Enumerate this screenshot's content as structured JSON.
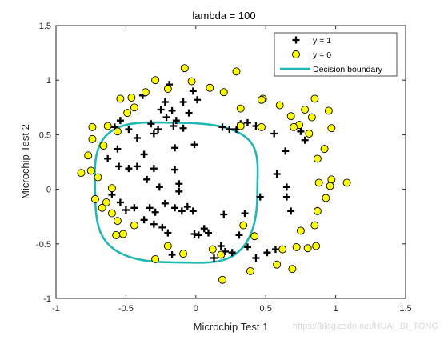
{
  "colors": {
    "background": "#ffffff",
    "axis": "#262626",
    "y1_marker": "#000000",
    "y0_fill": "#ffff00",
    "y0_edge": "#000000",
    "boundary": "#1fb8b4"
  },
  "chart_data": {
    "type": "scatter",
    "title": "lambda = 100",
    "xlabel": "Microchip Test 1",
    "ylabel": "Microchip Test 2",
    "xlim": [
      -1,
      1.5
    ],
    "ylim": [
      -1,
      1.5
    ],
    "xticks": [
      -1,
      -0.5,
      0,
      0.5,
      1,
      1.5
    ],
    "xtick_labels": [
      "-1",
      "-0.5",
      "0",
      "0.5",
      "1",
      "1.5"
    ],
    "yticks": [
      -1,
      -0.5,
      0,
      0.5,
      1,
      1.5
    ],
    "ytick_labels": [
      "-1",
      "-0.5",
      "0",
      "0.5",
      "1",
      "1.5"
    ],
    "grid": false,
    "legend_position": "top-right",
    "legend": [
      "y = 1",
      "y = 0",
      "Decision boundary"
    ],
    "series": [
      {
        "name": "y = 1",
        "marker": "plus",
        "points": [
          [
            -0.19,
            0.96
          ],
          [
            -0.02,
            0.9
          ],
          [
            -0.38,
            0.86
          ],
          [
            -0.22,
            0.8
          ],
          [
            -0.09,
            0.8
          ],
          [
            0.01,
            0.82
          ],
          [
            -0.25,
            0.73
          ],
          [
            -0.17,
            0.72
          ],
          [
            -0.21,
            0.66
          ],
          [
            -0.14,
            0.63
          ],
          [
            -0.05,
            0.7
          ],
          [
            -0.58,
            0.57
          ],
          [
            -0.54,
            0.63
          ],
          [
            -0.48,
            0.55
          ],
          [
            -0.32,
            0.6
          ],
          [
            -0.27,
            0.55
          ],
          [
            -0.16,
            0.58
          ],
          [
            -0.09,
            0.56
          ],
          [
            0.19,
            0.57
          ],
          [
            0.24,
            0.55
          ],
          [
            0.29,
            0.55
          ],
          [
            0.32,
            0.6
          ],
          [
            0.37,
            0.61
          ],
          [
            0.43,
            0.58
          ],
          [
            0.56,
            0.51
          ],
          [
            0.75,
            0.53
          ],
          [
            0.78,
            0.45
          ],
          [
            0.64,
            0.35
          ],
          [
            0.58,
            0.14
          ],
          [
            0.65,
            0.02
          ],
          [
            0.65,
            -0.07
          ],
          [
            0.68,
            -0.2
          ],
          [
            0.46,
            -0.07
          ],
          [
            0.35,
            -0.22
          ],
          [
            -0.3,
            0.51
          ],
          [
            -0.42,
            0.47
          ],
          [
            -0.56,
            0.37
          ],
          [
            -0.37,
            0.32
          ],
          [
            -0.15,
            0.38
          ],
          [
            -0.42,
            0.21
          ],
          [
            -0.01,
            0.41
          ],
          [
            -0.63,
            0.28
          ],
          [
            -0.55,
            0.21
          ],
          [
            -0.48,
            0.19
          ],
          [
            -0.3,
            0.19
          ],
          [
            -0.15,
            0.18
          ],
          [
            -0.35,
            0.09
          ],
          [
            -0.12,
            0.05
          ],
          [
            -0.26,
            0.02
          ],
          [
            -0.12,
            -0.02
          ],
          [
            -0.6,
            -0.05
          ],
          [
            -0.54,
            -0.12
          ],
          [
            -0.5,
            -0.19
          ],
          [
            -0.44,
            -0.17
          ],
          [
            -0.33,
            -0.17
          ],
          [
            -0.22,
            -0.13
          ],
          [
            -0.15,
            -0.17
          ],
          [
            -0.06,
            -0.16
          ],
          [
            -0.02,
            -0.2
          ],
          [
            -0.29,
            -0.21
          ],
          [
            -0.37,
            -0.28
          ],
          [
            -0.3,
            -0.32
          ],
          [
            0.2,
            -0.23
          ],
          [
            -0.1,
            -0.2
          ],
          [
            0.06,
            -0.36
          ],
          [
            -0.01,
            -0.41
          ],
          [
            0.09,
            -0.4
          ],
          [
            -0.24,
            -0.35
          ],
          [
            -0.2,
            -0.4
          ],
          [
            0.02,
            -0.42
          ],
          [
            0.18,
            -0.52
          ],
          [
            0.21,
            -0.57
          ],
          [
            0.26,
            -0.58
          ],
          [
            0.31,
            -0.42
          ],
          [
            0.37,
            -0.53
          ],
          [
            0.51,
            -0.58
          ],
          [
            0.57,
            -0.55
          ],
          [
            0.43,
            -0.63
          ],
          [
            0.13,
            -0.63
          ],
          [
            -0.17,
            -0.6
          ]
        ]
      },
      {
        "name": "y = 0",
        "marker": "circle",
        "points": [
          [
            -0.08,
            1.11
          ],
          [
            -0.29,
            1.0
          ],
          [
            -0.03,
            0.99
          ],
          [
            -0.2,
            0.92
          ],
          [
            -0.36,
            0.89
          ],
          [
            -0.46,
            0.84
          ],
          [
            0.1,
            0.93
          ],
          [
            0.2,
            0.89
          ],
          [
            0.29,
            1.08
          ],
          [
            0.32,
            0.74
          ],
          [
            0.48,
            0.83
          ],
          [
            0.6,
            0.77
          ],
          [
            0.68,
            0.67
          ],
          [
            0.74,
            0.59
          ],
          [
            0.78,
            0.73
          ],
          [
            0.85,
            0.83
          ],
          [
            0.83,
            0.66
          ],
          [
            0.95,
            0.72
          ],
          [
            0.97,
            0.56
          ],
          [
            0.81,
            0.51
          ],
          [
            0.92,
            0.37
          ],
          [
            0.87,
            0.28
          ],
          [
            1.08,
            0.06
          ],
          [
            0.97,
            0.09
          ],
          [
            0.96,
            0.03
          ],
          [
            0.88,
            0.06
          ],
          [
            0.93,
            -0.08
          ],
          [
            0.87,
            -0.2
          ],
          [
            0.85,
            -0.33
          ],
          [
            0.75,
            -0.38
          ],
          [
            0.86,
            -0.52
          ],
          [
            0.72,
            -0.53
          ],
          [
            0.8,
            -0.54
          ],
          [
            0.62,
            -0.55
          ],
          [
            0.69,
            -0.73
          ],
          [
            0.58,
            -0.69
          ],
          [
            0.39,
            -0.75
          ],
          [
            0.18,
            -0.6
          ],
          [
            0.12,
            -0.55
          ],
          [
            0.19,
            -0.83
          ],
          [
            -0.29,
            -0.64
          ],
          [
            -0.09,
            -0.59
          ],
          [
            -0.44,
            -0.33
          ],
          [
            -0.52,
            -0.41
          ],
          [
            -0.56,
            -0.29
          ],
          [
            -0.6,
            -0.22
          ],
          [
            -0.64,
            -0.12
          ],
          [
            -0.67,
            -0.17
          ],
          [
            -0.6,
            0.01
          ],
          [
            -0.7,
            0.11
          ],
          [
            -0.82,
            0.15
          ],
          [
            -0.77,
            0.31
          ],
          [
            -0.74,
            0.46
          ],
          [
            -0.66,
            0.4
          ],
          [
            -0.56,
            0.53
          ],
          [
            -0.49,
            0.7
          ],
          [
            -0.44,
            0.75
          ],
          [
            -0.63,
            0.58
          ],
          [
            -0.74,
            0.57
          ],
          [
            -0.54,
            0.83
          ],
          [
            -0.75,
            0.17
          ],
          [
            -0.72,
            -0.09
          ],
          [
            -0.57,
            -0.42
          ],
          [
            0.47,
            0.82
          ],
          [
            0.42,
            -0.43
          ],
          [
            0.32,
            0.58
          ],
          [
            0.47,
            0.57
          ],
          [
            0.7,
            0.57
          ],
          [
            -0.2,
            -0.52
          ],
          [
            0.34,
            -0.33
          ]
        ]
      }
    ]
  }
}
